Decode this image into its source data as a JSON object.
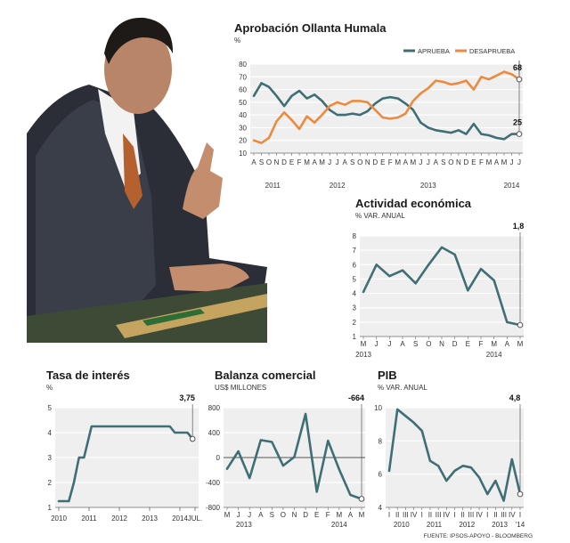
{
  "colors": {
    "teal": "#3f6f74",
    "orange": "#ee8a3d",
    "panel_bg": "#efefef",
    "grid": "#ffffff"
  },
  "photo": {
    "icon": "person-speaking-photo"
  },
  "source": "FUENTE: IPSOS-APOYO - BLOOMBERG",
  "chart_data": [
    {
      "id": "aprobacion",
      "type": "line",
      "title": "Aprobación Ollanta Humala",
      "unit": "%",
      "ylim": [
        10,
        80
      ],
      "yticks": [
        10,
        20,
        30,
        40,
        50,
        60,
        70,
        80
      ],
      "x_tick_labels": [
        "A",
        "S",
        "O",
        "N",
        "D",
        "E",
        "F",
        "M",
        "A",
        "M",
        "J",
        "J",
        "A",
        "S",
        "O",
        "N",
        "D",
        "E",
        "F",
        "M",
        "A",
        "M",
        "J",
        "J",
        "A",
        "S",
        "O",
        "N",
        "D",
        "E",
        "F",
        "M",
        "A",
        "M",
        "J",
        "J"
      ],
      "year_labels": [
        {
          "label": "2011",
          "at": 2.5
        },
        {
          "label": "2012",
          "at": 11
        },
        {
          "label": "2013",
          "at": 23
        },
        {
          "label": "2014",
          "at": 34
        }
      ],
      "legend_position": "top",
      "series": [
        {
          "name": "APRUEBA",
          "color": "#3f6f74",
          "values": [
            55,
            65,
            62,
            55,
            47,
            55,
            59,
            53,
            56,
            51,
            44,
            40,
            40,
            41,
            40,
            43,
            49,
            53,
            54,
            53,
            49,
            44,
            34,
            30,
            28,
            27,
            26,
            28,
            25,
            33,
            25,
            24,
            22,
            21,
            25,
            25
          ],
          "last_label": "25"
        },
        {
          "name": "DESAPRUEBA",
          "color": "#ee8a3d",
          "values": [
            20,
            18,
            22,
            35,
            42,
            36,
            29,
            39,
            34,
            40,
            47,
            50,
            48,
            51,
            51,
            50,
            44,
            38,
            37,
            38,
            41,
            51,
            57,
            61,
            67,
            66,
            64,
            65,
            67,
            60,
            70,
            68,
            71,
            74,
            72,
            68
          ],
          "last_label": "68"
        }
      ]
    },
    {
      "id": "actividad",
      "type": "line",
      "title": "Actividad económica",
      "unit": "% VAR. ANUAL",
      "ylim": [
        1,
        8
      ],
      "yticks": [
        1,
        2,
        3,
        4,
        5,
        6,
        7,
        8
      ],
      "x_tick_labels": [
        "M",
        "J",
        "J",
        "A",
        "S",
        "O",
        "N",
        "D",
        "E",
        "F",
        "M",
        "A",
        "M"
      ],
      "year_labels": [
        {
          "label": "2013",
          "at": 0
        },
        {
          "label": "2014",
          "at": 10
        }
      ],
      "series": [
        {
          "name": "",
          "color": "#3f6f74",
          "values": [
            4.1,
            6.0,
            5.2,
            5.6,
            4.7,
            6.0,
            7.2,
            6.7,
            4.2,
            5.7,
            4.9,
            2.0,
            1.8
          ],
          "last_label": "1,8"
        }
      ]
    },
    {
      "id": "tasa",
      "type": "line",
      "title": "Tasa de interés",
      "unit": "%",
      "ylim": [
        1,
        5
      ],
      "yticks": [
        1,
        2,
        3,
        4,
        5
      ],
      "x_tick_labels": [
        "2010",
        "2011",
        "2012",
        "2013",
        "2014",
        "JUL."
      ],
      "x_tick_positions": [
        0,
        12,
        24,
        36,
        48,
        54
      ],
      "series": [
        {
          "name": "",
          "color": "#3f6f74",
          "points": [
            [
              0,
              1.25
            ],
            [
              4,
              1.25
            ],
            [
              6,
              2
            ],
            [
              8,
              3
            ],
            [
              10,
              3
            ],
            [
              13,
              4.25
            ],
            [
              44,
              4.25
            ],
            [
              46,
              4
            ],
            [
              51,
              4
            ],
            [
              53,
              3.75
            ]
          ],
          "last_label": "3,75"
        }
      ]
    },
    {
      "id": "balanza",
      "type": "line",
      "title": "Balanza comercial",
      "unit": "US$ MILLONES",
      "ylim": [
        -800,
        800
      ],
      "yticks": [
        -800,
        -400,
        0,
        400,
        800
      ],
      "x_tick_labels": [
        "M",
        "J",
        "J",
        "A",
        "S",
        "O",
        "N",
        "D",
        "E",
        "F",
        "M",
        "A",
        "M"
      ],
      "year_labels": [
        {
          "label": "2013",
          "at": 1.5
        },
        {
          "label": "2014",
          "at": 10
        }
      ],
      "series": [
        {
          "name": "",
          "color": "#3f6f74",
          "values": [
            -180,
            100,
            -330,
            280,
            250,
            -130,
            10,
            700,
            -550,
            270,
            -190,
            -600,
            -664
          ],
          "last_label": "-664"
        }
      ]
    },
    {
      "id": "pib",
      "type": "line",
      "title": "PIB",
      "unit": "% VAR. ANUAL",
      "ylim": [
        4,
        10
      ],
      "yticks": [
        4,
        6,
        8,
        10
      ],
      "x_tick_labels": [
        "I",
        "II",
        "III",
        "IV",
        "I",
        "II",
        "III",
        "IV",
        "I",
        "II",
        "III",
        "IV",
        "I",
        "II",
        "III",
        "IV",
        "I"
      ],
      "year_labels": [
        {
          "label": "2010",
          "at": 1.5
        },
        {
          "label": "2011",
          "at": 5.5
        },
        {
          "label": "2012",
          "at": 9.5
        },
        {
          "label": "2013",
          "at": 13.5
        },
        {
          "label": "'14",
          "at": 16
        }
      ],
      "series": [
        {
          "name": "",
          "color": "#3f6f74",
          "values": [
            6.2,
            9.9,
            9.5,
            9.1,
            8.6,
            6.8,
            6.5,
            5.6,
            6.2,
            6.5,
            6.4,
            5.8,
            4.8,
            5.6,
            4.4,
            6.9,
            4.8
          ],
          "last_label": "4,8"
        }
      ]
    }
  ]
}
